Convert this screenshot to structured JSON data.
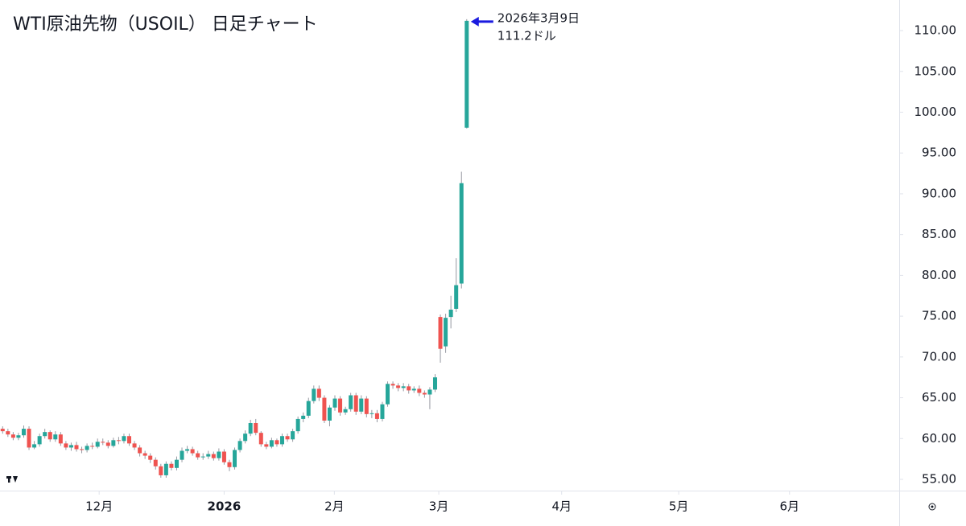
{
  "chart_data": {
    "type": "candlestick",
    "title": "WTI原油先物（USOIL） 日足チャート",
    "annotation": {
      "date": "2026年3月9日",
      "price": "111.2ドル"
    },
    "up_color": "#26a69a",
    "down_color": "#ef5350",
    "annotation_color": "#1a1adf",
    "open": [
      61.2,
      60.9,
      60.5,
      60.1,
      60.4,
      61.2,
      58.9,
      59.3,
      60.3,
      60.8,
      59.9,
      60.5,
      59.4,
      58.9,
      59.2,
      58.7,
      58.6,
      59.1,
      59.0,
      59.6,
      59.5,
      59.1,
      59.8,
      59.7,
      60.3,
      59.4,
      58.9,
      58.2,
      57.9,
      57.4,
      56.6,
      55.5,
      56.9,
      56.4,
      57.4,
      58.5,
      58.7,
      58.2,
      57.7,
      57.8,
      58.1,
      57.6,
      58.4,
      57.1,
      56.5,
      58.6,
      59.7,
      60.6,
      61.9,
      60.7,
      59.3,
      59.0,
      59.8,
      59.3,
      60.3,
      59.9,
      60.9,
      62.4,
      62.8,
      64.6,
      66.1,
      65.0,
      62.2,
      63.8,
      64.9,
      63.2,
      63.6,
      65.3,
      63.3,
      64.9,
      63.0,
      63.1,
      62.4,
      64.2,
      66.7,
      66.5,
      66.2,
      66.4,
      65.9,
      66.1,
      65.6,
      65.4,
      66.0,
      74.9,
      71.3,
      74.9,
      75.9,
      79.0,
      98.1
    ],
    "high": [
      61.5,
      61.2,
      60.8,
      60.7,
      61.6,
      61.5,
      59.7,
      60.6,
      61.2,
      61.0,
      60.9,
      60.8,
      59.7,
      59.5,
      59.6,
      59.0,
      59.4,
      59.5,
      60.0,
      60.0,
      59.8,
      60.1,
      60.2,
      60.6,
      60.6,
      59.7,
      59.2,
      58.5,
      58.2,
      57.7,
      56.9,
      57.2,
      57.2,
      57.8,
      58.9,
      59.1,
      59.0,
      58.5,
      58.2,
      58.5,
      58.4,
      58.8,
      58.7,
      57.4,
      58.9,
      60.0,
      61.0,
      62.3,
      62.4,
      60.9,
      59.6,
      60.1,
      60.0,
      60.6,
      60.6,
      61.2,
      62.7,
      63.2,
      65.0,
      66.5,
      66.5,
      65.3,
      64.1,
      65.3,
      65.2,
      63.9,
      65.6,
      65.6,
      65.3,
      65.2,
      63.5,
      63.5,
      64.5,
      67.0,
      67.0,
      66.8,
      66.8,
      66.7,
      66.4,
      66.5,
      65.9,
      66.3,
      67.9,
      75.2,
      75.3,
      77.5,
      82.1,
      92.7,
      111.4
    ],
    "low": [
      60.6,
      60.2,
      59.8,
      59.8,
      60.1,
      58.6,
      58.7,
      59.0,
      60.0,
      59.6,
      59.6,
      59.1,
      58.6,
      58.5,
      58.4,
      58.2,
      58.3,
      58.7,
      58.8,
      59.2,
      58.8,
      58.9,
      59.3,
      59.4,
      59.1,
      58.6,
      57.8,
      57.5,
      57.0,
      56.2,
      55.2,
      55.2,
      56.1,
      56.1,
      57.1,
      58.2,
      57.9,
      57.4,
      57.4,
      57.5,
      57.3,
      57.3,
      56.8,
      56.0,
      56.2,
      58.3,
      59.4,
      60.3,
      60.4,
      59.0,
      58.7,
      58.8,
      59.0,
      59.0,
      59.6,
      59.6,
      60.6,
      62.0,
      62.5,
      64.3,
      64.6,
      61.9,
      61.5,
      63.4,
      62.8,
      62.9,
      63.3,
      62.9,
      63.0,
      62.6,
      62.5,
      62.0,
      62.1,
      63.9,
      66.1,
      65.8,
      65.8,
      65.5,
      65.6,
      65.2,
      65.0,
      63.6,
      65.7,
      69.3,
      70.5,
      73.5,
      75.5,
      78.4,
      98.0
    ],
    "close": [
      60.9,
      60.5,
      60.1,
      60.4,
      61.2,
      58.9,
      59.3,
      60.3,
      60.8,
      59.9,
      60.5,
      59.4,
      58.9,
      59.2,
      58.7,
      58.6,
      59.1,
      59.0,
      59.6,
      59.5,
      59.1,
      59.8,
      59.7,
      60.3,
      59.4,
      58.9,
      58.2,
      57.9,
      57.4,
      56.6,
      55.5,
      56.9,
      56.4,
      57.4,
      58.5,
      58.7,
      58.2,
      57.7,
      57.8,
      58.1,
      57.6,
      58.4,
      57.1,
      56.5,
      58.6,
      59.7,
      60.6,
      61.9,
      60.7,
      59.3,
      59.0,
      59.8,
      59.3,
      60.3,
      59.9,
      60.9,
      62.4,
      62.8,
      64.6,
      66.1,
      65.0,
      62.2,
      63.8,
      64.9,
      63.2,
      63.6,
      65.3,
      63.3,
      64.9,
      63.0,
      63.1,
      62.4,
      64.2,
      66.7,
      66.5,
      66.2,
      66.4,
      65.9,
      66.1,
      65.6,
      65.4,
      66.0,
      67.5,
      71.0,
      74.8,
      75.8,
      78.8,
      91.3,
      111.2
    ],
    "xlim": [
      -0.5,
      170
    ],
    "xticks": [
      {
        "value": 18.3,
        "label": "12月"
      },
      {
        "value": 42,
        "label": "2026"
      },
      {
        "value": 62.9,
        "label": "2月"
      },
      {
        "value": 82.7,
        "label": "3月"
      },
      {
        "value": 106,
        "label": "4月"
      },
      {
        "value": 128.2,
        "label": "5月"
      },
      {
        "value": 149.2,
        "label": "6月"
      }
    ],
    "ylim": [
      53.62,
      113.75
    ],
    "yticks": [
      {
        "value": 55,
        "label": "55.00"
      },
      {
        "value": 60,
        "label": "60.00"
      },
      {
        "value": 65,
        "label": "65.00"
      },
      {
        "value": 70,
        "label": "70.00"
      },
      {
        "value": 75,
        "label": "75.00"
      },
      {
        "value": 80,
        "label": "80.00"
      },
      {
        "value": 85,
        "label": "85.00"
      },
      {
        "value": 90,
        "label": "90.00"
      },
      {
        "value": 95,
        "label": "95.00"
      },
      {
        "value": 100,
        "label": "100.00"
      },
      {
        "value": 105,
        "label": "105.00"
      },
      {
        "value": 110,
        "label": "110.00"
      }
    ]
  }
}
